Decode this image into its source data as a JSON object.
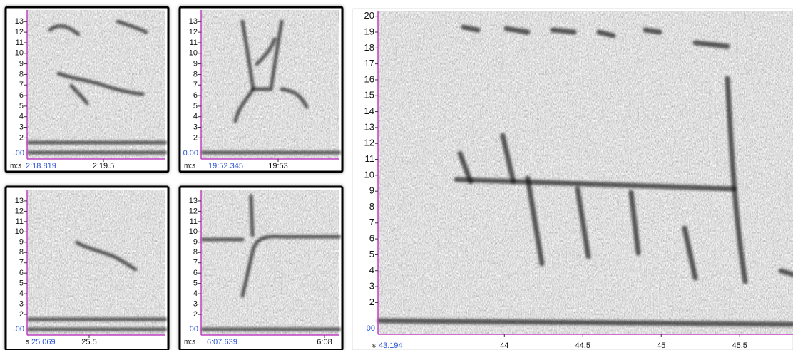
{
  "panels": [
    {
      "y_ticks": [
        2,
        3,
        4,
        5,
        6,
        7,
        8,
        9,
        10,
        11,
        12,
        13
      ],
      "ylim": [
        0,
        14.1
      ],
      "zero_label": ".00",
      "x_prefix": "m:s",
      "x_start": "2:18.819",
      "x_labels": [
        "2:19.5"
      ]
    },
    {
      "y_ticks": [
        2,
        3,
        4,
        5,
        6,
        7,
        8,
        9,
        10,
        11,
        12,
        13
      ],
      "ylim": [
        0,
        14.1
      ],
      "zero_label": "0.00",
      "x_prefix": "m:s",
      "x_start": "19:52.345",
      "x_labels": [
        "19:53"
      ]
    },
    {
      "y_ticks": [
        2,
        3,
        4,
        5,
        6,
        7,
        8,
        9,
        10,
        11,
        12,
        13
      ],
      "ylim": [
        0,
        14.1
      ],
      "zero_label": ".00",
      "x_prefix": "s",
      "x_start": "25.069",
      "x_labels": [
        "25.5"
      ]
    },
    {
      "y_ticks": [
        2,
        3,
        4,
        5,
        6,
        7,
        8,
        9,
        10,
        11,
        12,
        13
      ],
      "ylim": [
        0,
        14.1
      ],
      "zero_label": "00",
      "x_prefix": "m:s",
      "x_start": "6:07.639",
      "x_labels": [
        "6:08"
      ]
    },
    {
      "y_ticks": [
        2,
        3,
        4,
        5,
        6,
        7,
        8,
        9,
        10,
        11,
        12,
        13,
        14,
        15,
        16,
        17,
        18,
        19,
        20
      ],
      "ylim": [
        0,
        20.3
      ],
      "xlim": [
        43.194,
        45.84
      ],
      "zero_label": "00",
      "x_prefix": "s",
      "x_start": "43.194",
      "x_labels": [
        44,
        44.5,
        45,
        45.5
      ]
    }
  ]
}
